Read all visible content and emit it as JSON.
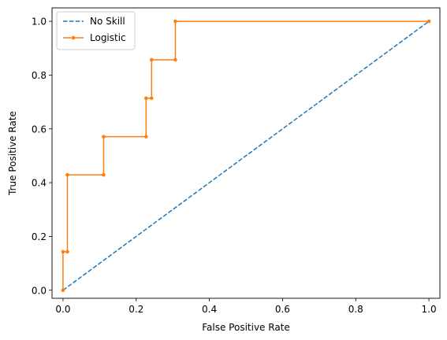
{
  "chart_data": {
    "type": "line",
    "xlabel": "False Positive Rate",
    "ylabel": "True Positive Rate",
    "xlim": [
      -0.03,
      1.03
    ],
    "ylim": [
      -0.03,
      1.05
    ],
    "xticks": [
      0.0,
      0.2,
      0.4,
      0.6,
      0.8,
      1.0
    ],
    "yticks": [
      0.0,
      0.2,
      0.4,
      0.6,
      0.8,
      1.0
    ],
    "xtick_labels": [
      "0.0",
      "0.2",
      "0.4",
      "0.6",
      "0.8",
      "1.0"
    ],
    "ytick_labels": [
      "0.0",
      "0.2",
      "0.4",
      "0.6",
      "0.8",
      "1.0"
    ],
    "grid": false,
    "legend_position": "top-left",
    "series": [
      {
        "name": "No Skill",
        "style": "dashed",
        "color": "#1f77b4",
        "x": [
          0,
          1
        ],
        "y": [
          0,
          1
        ]
      },
      {
        "name": "Logistic",
        "style": "solid-with-markers",
        "color": "#ff7f0e",
        "x": [
          0.0,
          0.0,
          0.012,
          0.012,
          0.111,
          0.111,
          0.227,
          0.227,
          0.242,
          0.242,
          0.307,
          0.307,
          1.0
        ],
        "y": [
          0.0,
          0.143,
          0.143,
          0.429,
          0.429,
          0.571,
          0.571,
          0.714,
          0.714,
          0.857,
          0.857,
          1.0,
          1.0
        ]
      }
    ]
  }
}
